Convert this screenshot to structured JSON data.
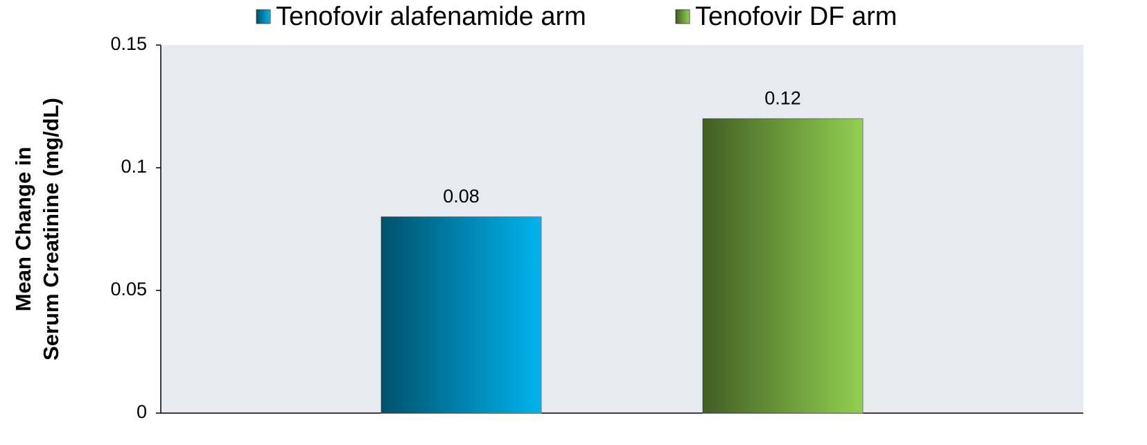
{
  "chart_data": {
    "type": "bar",
    "categories": [
      null
    ],
    "series": [
      {
        "name": "Tenofovir alafenamide arm",
        "color": "#00b4ef",
        "values": [
          0.08
        ]
      },
      {
        "name": "Tenofovir DF arm",
        "color": "#92d050",
        "values": [
          0.12
        ]
      }
    ],
    "ylabel": [
      "Mean Change in",
      "Serum Creatinine (mg/dL)"
    ],
    "ylim": [
      0,
      0.15
    ],
    "yticks": [
      0,
      0.05,
      0.1,
      0.15
    ],
    "grid": false,
    "legend": "top"
  }
}
